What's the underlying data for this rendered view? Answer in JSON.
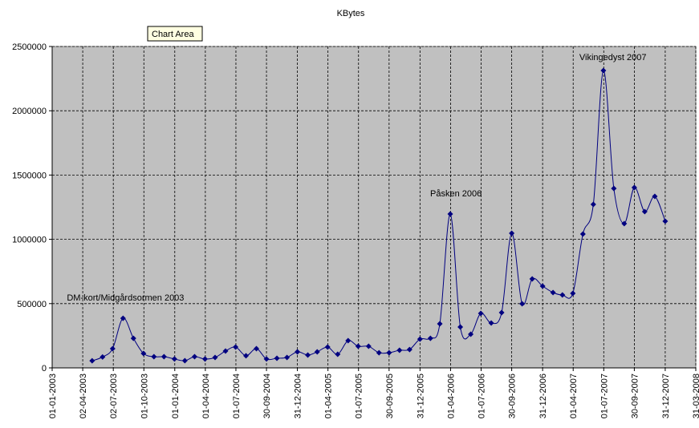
{
  "chart_data": {
    "type": "line",
    "title": "KBytes",
    "tooltip": "Chart Area",
    "x": [
      "30-04-2003",
      "31-05-2003",
      "30-06-2003",
      "31-07-2003",
      "31-08-2003",
      "30-09-2003",
      "31-10-2003",
      "30-11-2003",
      "31-12-2003",
      "31-01-2004",
      "29-02-2004",
      "31-03-2004",
      "30-04-2004",
      "31-05-2004",
      "30-06-2004",
      "31-07-2004",
      "31-08-2004",
      "30-09-2004",
      "31-10-2004",
      "30-11-2004",
      "31-12-2004",
      "31-01-2005",
      "28-02-2005",
      "31-03-2005",
      "30-04-2005",
      "31-05-2005",
      "30-06-2005",
      "31-07-2005",
      "31-08-2005",
      "30-09-2005",
      "31-10-2005",
      "30-11-2005",
      "31-12-2005",
      "31-01-2006",
      "28-02-2006",
      "31-03-2006",
      "30-04-2006",
      "31-05-2006",
      "30-06-2006",
      "31-07-2006",
      "31-08-2006",
      "30-09-2006",
      "31-10-2006",
      "30-11-2006",
      "31-12-2006",
      "31-01-2007",
      "28-02-2007",
      "31-03-2007",
      "30-04-2007",
      "31-05-2007",
      "30-06-2007",
      "31-07-2007",
      "31-08-2007",
      "30-09-2007",
      "31-10-2007",
      "30-11-2007",
      "31-12-2007"
    ],
    "series": [
      {
        "name": "KBytes",
        "color": "#000080",
        "values": [
          55000,
          85000,
          150000,
          386000,
          230000,
          112000,
          87000,
          87000,
          69000,
          56000,
          87000,
          69000,
          81000,
          131000,
          162000,
          94000,
          150000,
          69000,
          75000,
          81000,
          125000,
          100000,
          125000,
          162000,
          106000,
          212000,
          168000,
          168000,
          118000,
          118000,
          137000,
          143000,
          224000,
          230000,
          343000,
          1197000,
          318000,
          262000,
          424000,
          349000,
          430000,
          1047000,
          499000,
          692000,
          636000,
          586000,
          567000,
          580000,
          1041000,
          1272000,
          2313000,
          1396000,
          1122000,
          1403000,
          1216000,
          1334000,
          1141000
        ]
      }
    ],
    "annotations": [
      {
        "text": "DM-kort/Midgårdsormen 2003",
        "x": "31-07-2003"
      },
      {
        "text": "Påsken 2006",
        "x": "31-03-2006"
      },
      {
        "text": "Vikingedyst 2007",
        "x": "30-06-2007"
      }
    ],
    "xlim": [
      "01-01-2003",
      "31-03-2008"
    ],
    "xticks": [
      "01-01-2003",
      "02-04-2003",
      "02-07-2003",
      "01-10-2003",
      "01-01-2004",
      "01-04-2004",
      "01-07-2004",
      "30-09-2004",
      "31-12-2004",
      "01-04-2005",
      "01-07-2005",
      "30-09-2005",
      "31-12-2005",
      "01-04-2006",
      "01-07-2006",
      "30-09-2006",
      "31-12-2006",
      "01-04-2007",
      "01-07-2007",
      "30-09-2007",
      "31-12-2007",
      "31-03-2008"
    ],
    "ylim": [
      0,
      2500000
    ],
    "yticks": [
      0,
      500000,
      1000000,
      1500000,
      2000000,
      2500000
    ],
    "grid": true,
    "plot_background": "#c0c0c0"
  }
}
